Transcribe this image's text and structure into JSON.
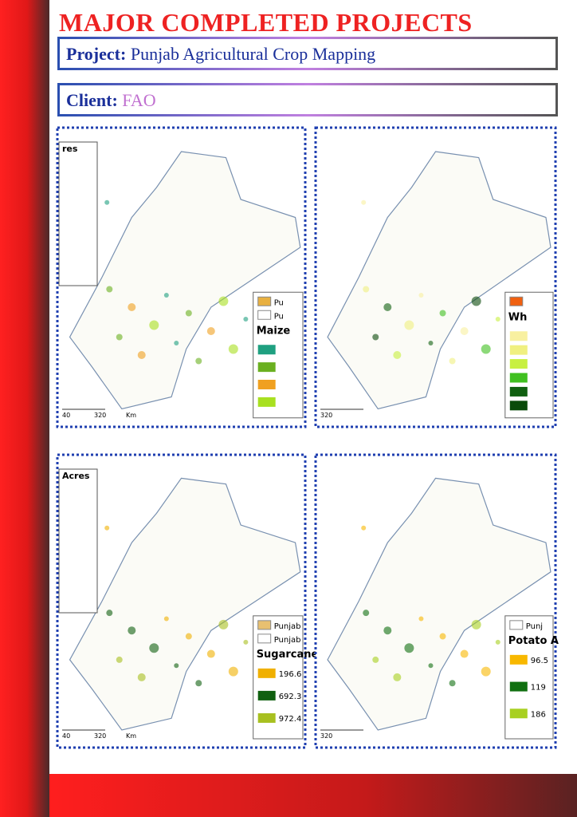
{
  "header": {
    "title": "MAJOR COMPLETED PROJECTS"
  },
  "project": {
    "label": "Project:",
    "value": "Punjab Agricultural Crop Mapping"
  },
  "client": {
    "label": "Client:",
    "value": "FAO"
  },
  "maps": [
    {
      "table_header": "res",
      "legend_title": "Maize",
      "legend_items": [
        {
          "label": "Pu",
          "color": "#e8b040"
        },
        {
          "label": "Pu",
          "color": "#ffffff"
        }
      ],
      "class_colors": [
        "#1fa080",
        "#6ab020",
        "#f0a020",
        "#a8e020"
      ],
      "scale": [
        "40",
        "320",
        "Km"
      ]
    },
    {
      "legend_title": "Wh",
      "legend_items": [
        {
          "label": "",
          "color": "#f06010"
        }
      ],
      "class_colors": [
        "#f8f0a0",
        "#f0f080",
        "#c8f040",
        "#40c020",
        "#106010",
        "#0a4a0a"
      ],
      "scale": [
        "320"
      ]
    },
    {
      "table_header": "Acres",
      "legend_title": "Sugarcane",
      "legend_items": [
        {
          "label": "Punjab",
          "color": "#e8c070"
        },
        {
          "label": "Punjab",
          "color": "#ffffff"
        }
      ],
      "class_colors": [
        "#f0b000",
        "#106010",
        "#a8c020"
      ],
      "class_labels": [
        "196.6",
        "692.3",
        "972.4"
      ],
      "scale": [
        "40",
        "320",
        "Km"
      ]
    },
    {
      "legend_title": "Potato A",
      "legend_items": [
        {
          "label": "Punj",
          "color": "#ffffff"
        }
      ],
      "class_colors": [
        "#f8b800",
        "#107010",
        "#a8d020"
      ],
      "class_labels": [
        "96.5",
        "119",
        "186"
      ],
      "scale": [
        "320"
      ]
    }
  ]
}
